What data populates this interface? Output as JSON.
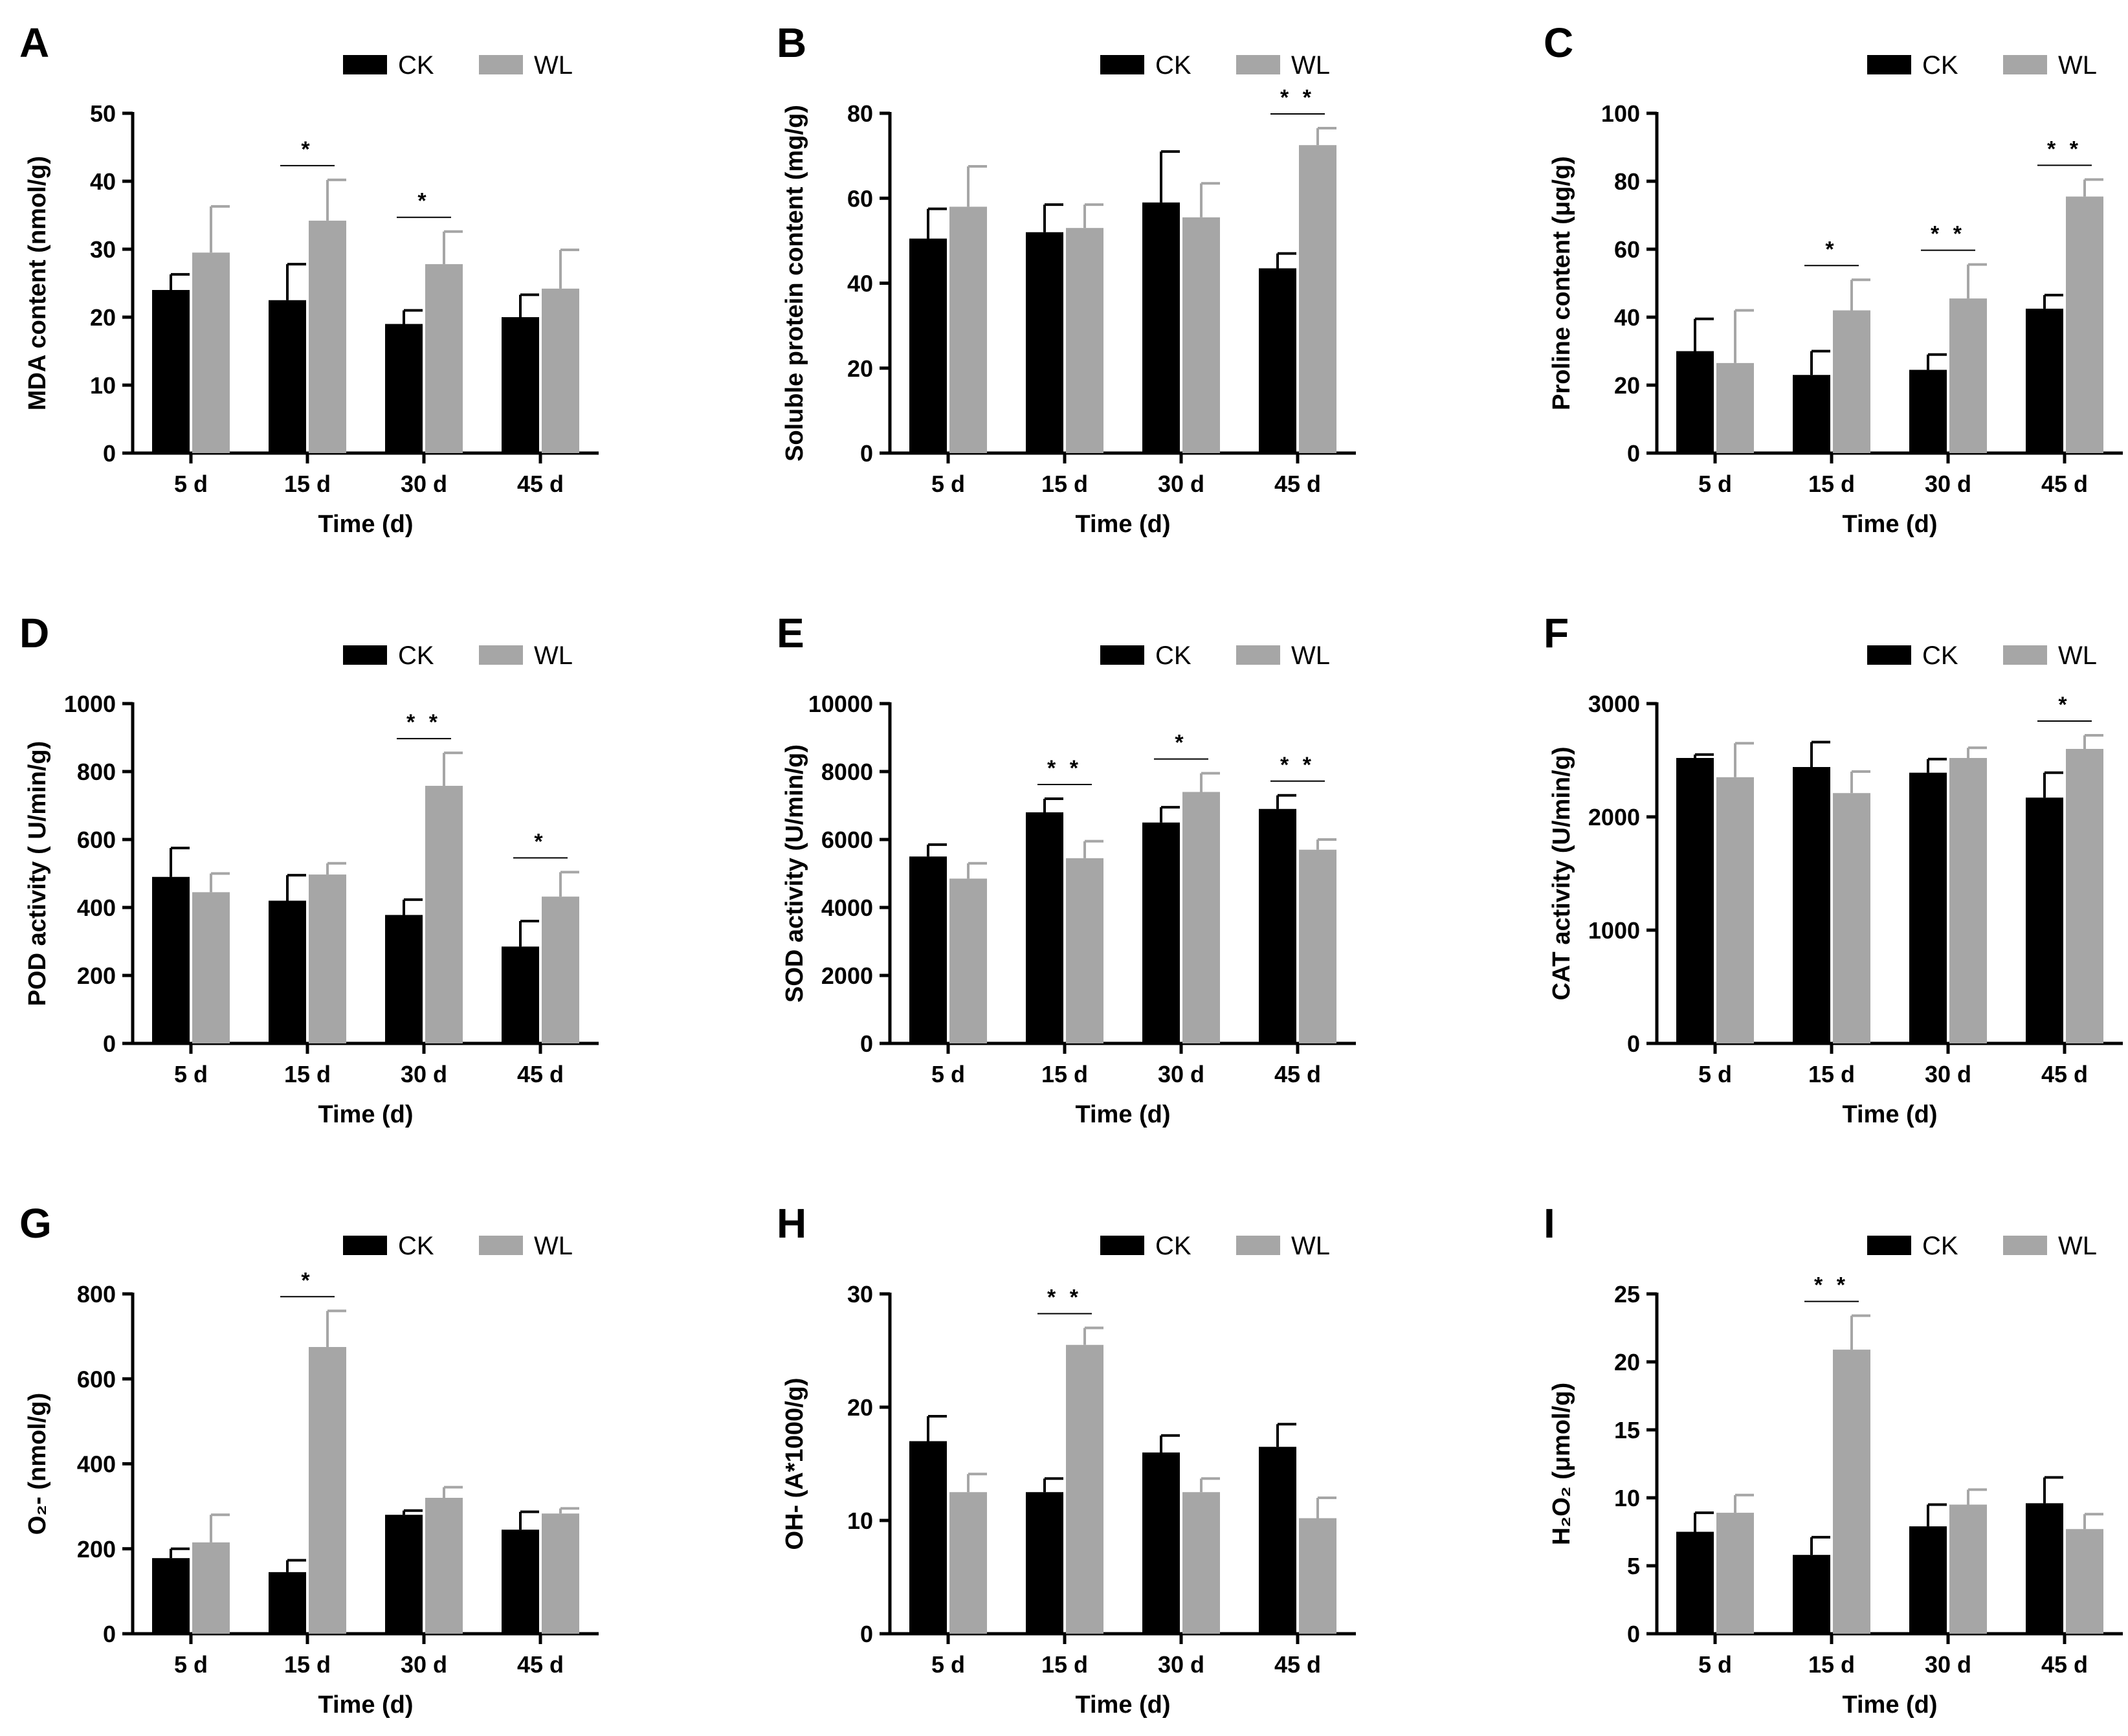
{
  "colors": {
    "CK": "#000000",
    "WL": "#a6a6a6",
    "axis": "#000000"
  },
  "chart_data": [
    {
      "type": "bar",
      "letter": "A",
      "categories": [
        "5 d",
        "15 d",
        "30 d",
        "45 d"
      ],
      "series": [
        {
          "name": "CK",
          "values": [
            24,
            22.5,
            19,
            20
          ],
          "errors": [
            2.3,
            5.3,
            2,
            3.3
          ]
        },
        {
          "name": "WL",
          "values": [
            29.5,
            34.2,
            27.8,
            24.2
          ],
          "errors": [
            6.8,
            6,
            4.8,
            5.7
          ]
        }
      ],
      "significance": [
        "",
        "*",
        "*",
        ""
      ],
      "ylabel": "MDA content (nmol/g)",
      "xlabel": "Time (d)",
      "ylim": [
        0,
        50
      ],
      "yticks": [
        0,
        10,
        20,
        30,
        40,
        50
      ],
      "ytick_labels": [
        "0",
        "10",
        "20",
        "30",
        "40",
        "50"
      ],
      "legend": [
        "CK",
        "WL"
      ]
    },
    {
      "type": "bar",
      "letter": "B",
      "categories": [
        "5 d",
        "15 d",
        "30 d",
        "45 d"
      ],
      "series": [
        {
          "name": "CK",
          "values": [
            50.5,
            52,
            59,
            43.5
          ],
          "errors": [
            7,
            6.5,
            12,
            3.5
          ]
        },
        {
          "name": "WL",
          "values": [
            58,
            53,
            55.5,
            72.5
          ],
          "errors": [
            9.5,
            5.5,
            8,
            4
          ]
        }
      ],
      "significance": [
        "",
        "",
        "",
        "* *"
      ],
      "ylabel": "Soluble protein content (mg/g)",
      "xlabel": "Time (d)",
      "ylim": [
        0,
        80
      ],
      "yticks": [
        0,
        20,
        40,
        60,
        80
      ],
      "ytick_labels": [
        "0",
        "20",
        "40",
        "60",
        "80"
      ],
      "legend": [
        "CK",
        "WL"
      ]
    },
    {
      "type": "bar",
      "letter": "C",
      "categories": [
        "5 d",
        "15 d",
        "30 d",
        "45 d"
      ],
      "series": [
        {
          "name": "CK",
          "values": [
            30,
            23,
            24.5,
            42.5
          ],
          "errors": [
            9.5,
            7,
            4.5,
            4
          ]
        },
        {
          "name": "WL",
          "values": [
            26.5,
            42,
            45.5,
            75.5
          ],
          "errors": [
            15.5,
            9,
            10,
            5
          ]
        }
      ],
      "significance": [
        "",
        "*",
        "* *",
        "* *"
      ],
      "ylabel": "Proline content (μg/g)",
      "xlabel": "Time (d)",
      "ylim": [
        0,
        100
      ],
      "yticks": [
        0,
        20,
        40,
        60,
        80,
        100
      ],
      "ytick_labels": [
        "0",
        "20",
        "40",
        "60",
        "80",
        "100"
      ],
      "legend": [
        "CK",
        "WL"
      ]
    },
    {
      "type": "bar",
      "letter": "D",
      "categories": [
        "5 d",
        "15 d",
        "30 d",
        "45 d"
      ],
      "series": [
        {
          "name": "CK",
          "values": [
            490,
            420,
            378,
            285
          ],
          "errors": [
            85,
            75,
            45,
            75
          ]
        },
        {
          "name": "WL",
          "values": [
            445,
            497,
            758,
            432
          ],
          "errors": [
            55,
            33,
            97,
            72
          ]
        }
      ],
      "significance": [
        "",
        "",
        "* *",
        "*"
      ],
      "ylabel": "POD activity ( U/min/g)",
      "xlabel": "Time (d)",
      "ylim": [
        0,
        1000
      ],
      "yticks": [
        0,
        200,
        400,
        600,
        800,
        1000
      ],
      "ytick_labels": [
        "0",
        "200",
        "400",
        "600",
        "800",
        "1000"
      ],
      "legend": [
        "CK",
        "WL"
      ]
    },
    {
      "type": "bar",
      "letter": "E",
      "categories": [
        "5 d",
        "15 d",
        "30 d",
        "45 d"
      ],
      "series": [
        {
          "name": "CK",
          "values": [
            5500,
            6800,
            6500,
            6900
          ],
          "errors": [
            350,
            400,
            450,
            400
          ]
        },
        {
          "name": "WL",
          "values": [
            4850,
            5450,
            7400,
            5700
          ],
          "errors": [
            450,
            500,
            550,
            300
          ]
        }
      ],
      "significance": [
        "",
        "* *",
        "*",
        "* *"
      ],
      "ylabel": "SOD activity (U/min/g)",
      "xlabel": "Time (d)",
      "ylim": [
        0,
        10000
      ],
      "yticks": [
        0,
        2000,
        4000,
        6000,
        8000,
        10000
      ],
      "ytick_labels": [
        "0",
        "2000",
        "4000",
        "6000",
        "8000",
        "10000"
      ],
      "legend": [
        "CK",
        "WL"
      ]
    },
    {
      "type": "bar",
      "letter": "F",
      "categories": [
        "5 d",
        "15 d",
        "30 d",
        "45 d"
      ],
      "series": [
        {
          "name": "CK",
          "values": [
            2520,
            2440,
            2390,
            2170
          ],
          "errors": [
            30,
            220,
            120,
            220
          ]
        },
        {
          "name": "WL",
          "values": [
            2350,
            2210,
            2520,
            2600
          ],
          "errors": [
            300,
            190,
            90,
            120
          ]
        }
      ],
      "significance": [
        "",
        "",
        "",
        "*"
      ],
      "ylabel": "CAT  activity (U/min/g)",
      "xlabel": "Time (d)",
      "ylim": [
        0,
        3000
      ],
      "yticks": [
        0,
        1000,
        2000,
        3000
      ],
      "ytick_labels": [
        "0",
        "1000",
        "2000",
        "3000"
      ],
      "legend": [
        "CK",
        "WL"
      ]
    },
    {
      "type": "bar",
      "letter": "G",
      "categories": [
        "5 d",
        "15 d",
        "30 d",
        "45 d"
      ],
      "series": [
        {
          "name": "CK",
          "values": [
            178,
            145,
            280,
            245
          ],
          "errors": [
            22,
            28,
            10,
            42
          ]
        },
        {
          "name": "WL",
          "values": [
            215,
            675,
            320,
            283
          ],
          "errors": [
            65,
            85,
            25,
            12
          ]
        }
      ],
      "significance": [
        "",
        "*",
        "",
        ""
      ],
      "ylabel": "O₂- (nmol/g)",
      "xlabel": "Time (d)",
      "ylim": [
        0,
        800
      ],
      "yticks": [
        0,
        200,
        400,
        600,
        800
      ],
      "ytick_labels": [
        "0",
        "200",
        "400",
        "600",
        "800"
      ],
      "legend": [
        "CK",
        "WL"
      ]
    },
    {
      "type": "bar",
      "letter": "H",
      "categories": [
        "5 d",
        "15 d",
        "30 d",
        "45 d"
      ],
      "series": [
        {
          "name": "CK",
          "values": [
            17,
            12.5,
            16,
            16.5
          ],
          "errors": [
            2.2,
            1.2,
            1.5,
            2
          ]
        },
        {
          "name": "WL",
          "values": [
            12.5,
            25.5,
            12.5,
            10.2
          ],
          "errors": [
            1.6,
            1.5,
            1.2,
            1.8
          ]
        }
      ],
      "significance": [
        "",
        "* *",
        "",
        ""
      ],
      "ylabel": "OH- (A*1000/g)",
      "xlabel": "Time (d)",
      "ylim": [
        0,
        30
      ],
      "yticks": [
        0,
        10,
        20,
        30
      ],
      "ytick_labels": [
        "0",
        "10",
        "20",
        "30"
      ],
      "legend": [
        "CK",
        "WL"
      ]
    },
    {
      "type": "bar",
      "letter": "I",
      "categories": [
        "5 d",
        "15 d",
        "30 d",
        "45 d"
      ],
      "series": [
        {
          "name": "CK",
          "values": [
            7.5,
            5.8,
            7.9,
            9.6
          ],
          "errors": [
            1.4,
            1.3,
            1.6,
            1.9
          ]
        },
        {
          "name": "WL",
          "values": [
            8.9,
            20.9,
            9.5,
            7.7
          ],
          "errors": [
            1.3,
            2.5,
            1.1,
            1.1
          ]
        }
      ],
      "significance": [
        "",
        "* *",
        "",
        ""
      ],
      "ylabel": "H₂O₂ (μmol/g)",
      "xlabel": "Time (d)",
      "ylim": [
        0,
        25
      ],
      "yticks": [
        0,
        5,
        10,
        15,
        20,
        25
      ],
      "ytick_labels": [
        "0",
        "5",
        "10",
        "15",
        "20",
        "25"
      ],
      "legend": [
        "CK",
        "WL"
      ]
    }
  ]
}
